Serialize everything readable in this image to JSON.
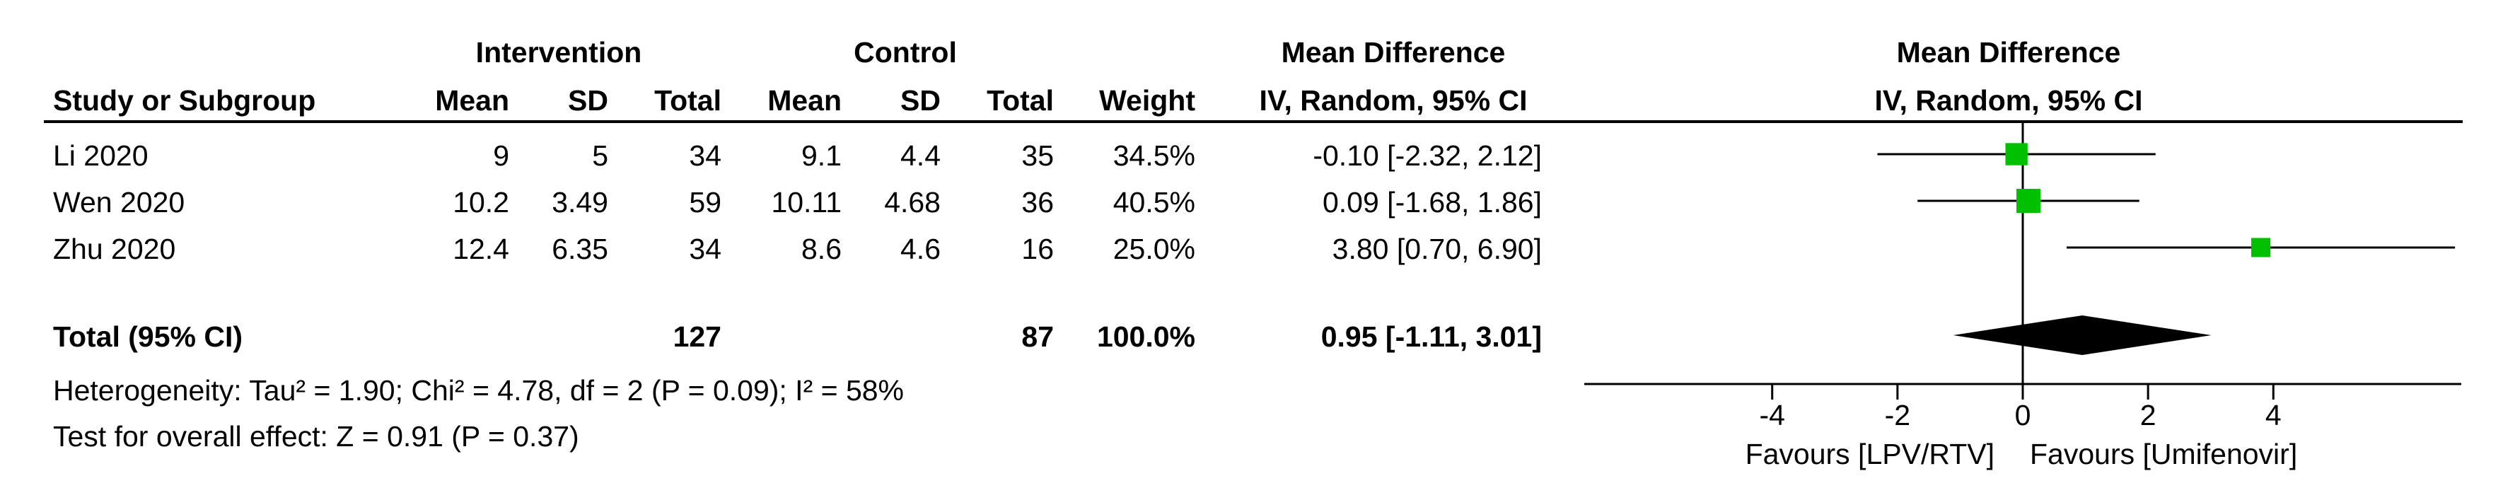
{
  "headers": {
    "group1": "Intervention",
    "group2": "Control",
    "md_left": "Mean Difference",
    "md_right": "Mean Difference",
    "study": "Study or Subgroup",
    "mean1": "Mean",
    "sd1": "SD",
    "total1": "Total",
    "mean2": "Mean",
    "sd2": "SD",
    "total2": "Total",
    "weight": "Weight",
    "method_left": "IV, Random, 95% CI",
    "method_right": "IV, Random, 95% CI"
  },
  "studies": [
    {
      "name": "Li 2020",
      "mean1": "9",
      "sd1": "5",
      "total1": "34",
      "mean2": "9.1",
      "sd2": "4.4",
      "total2": "35",
      "weight": "34.5%",
      "ci": "-0.10 [-2.32, 2.12]"
    },
    {
      "name": "Wen 2020",
      "mean1": "10.2",
      "sd1": "3.49",
      "total1": "59",
      "mean2": "10.11",
      "sd2": "4.68",
      "total2": "36",
      "weight": "40.5%",
      "ci": "0.09 [-1.68, 1.86]"
    },
    {
      "name": "Zhu 2020",
      "mean1": "12.4",
      "sd1": "6.35",
      "total1": "34",
      "mean2": "8.6",
      "sd2": "4.6",
      "total2": "16",
      "weight": "25.0%",
      "ci": "3.80 [0.70, 6.90]"
    }
  ],
  "total": {
    "label": "Total (95% CI)",
    "total1": "127",
    "total2": "87",
    "weight": "100.0%",
    "ci": "0.95 [-1.11, 3.01]"
  },
  "heterogeneity": "Heterogeneity: Tau² = 1.90; Chi² = 4.78, df = 2 (P = 0.09); I² = 58%",
  "overall_effect": "Test for overall effect: Z = 0.91 (P = 0.37)",
  "favours_left": "Favours [LPV/RTV]",
  "favours_right": "Favours [Umifenovir]",
  "colors": {
    "marker": "#00c000",
    "line": "#000000"
  },
  "chart_data": {
    "type": "forest",
    "xlim": [
      -7,
      7
    ],
    "ticks": [
      -4,
      -2,
      0,
      2,
      4
    ],
    "tick_labels": [
      "-4",
      "-2",
      "0",
      "2",
      "4"
    ],
    "studies": [
      {
        "name": "Li 2020",
        "estimate": -0.1,
        "lower": -2.32,
        "upper": 2.12,
        "weight": 34.5
      },
      {
        "name": "Wen 2020",
        "estimate": 0.09,
        "lower": -1.68,
        "upper": 1.86,
        "weight": 40.5
      },
      {
        "name": "Zhu 2020",
        "estimate": 3.8,
        "lower": 0.7,
        "upper": 6.9,
        "weight": 25.0
      }
    ],
    "pooled": {
      "estimate": 0.95,
      "lower": -1.11,
      "upper": 3.01
    }
  }
}
